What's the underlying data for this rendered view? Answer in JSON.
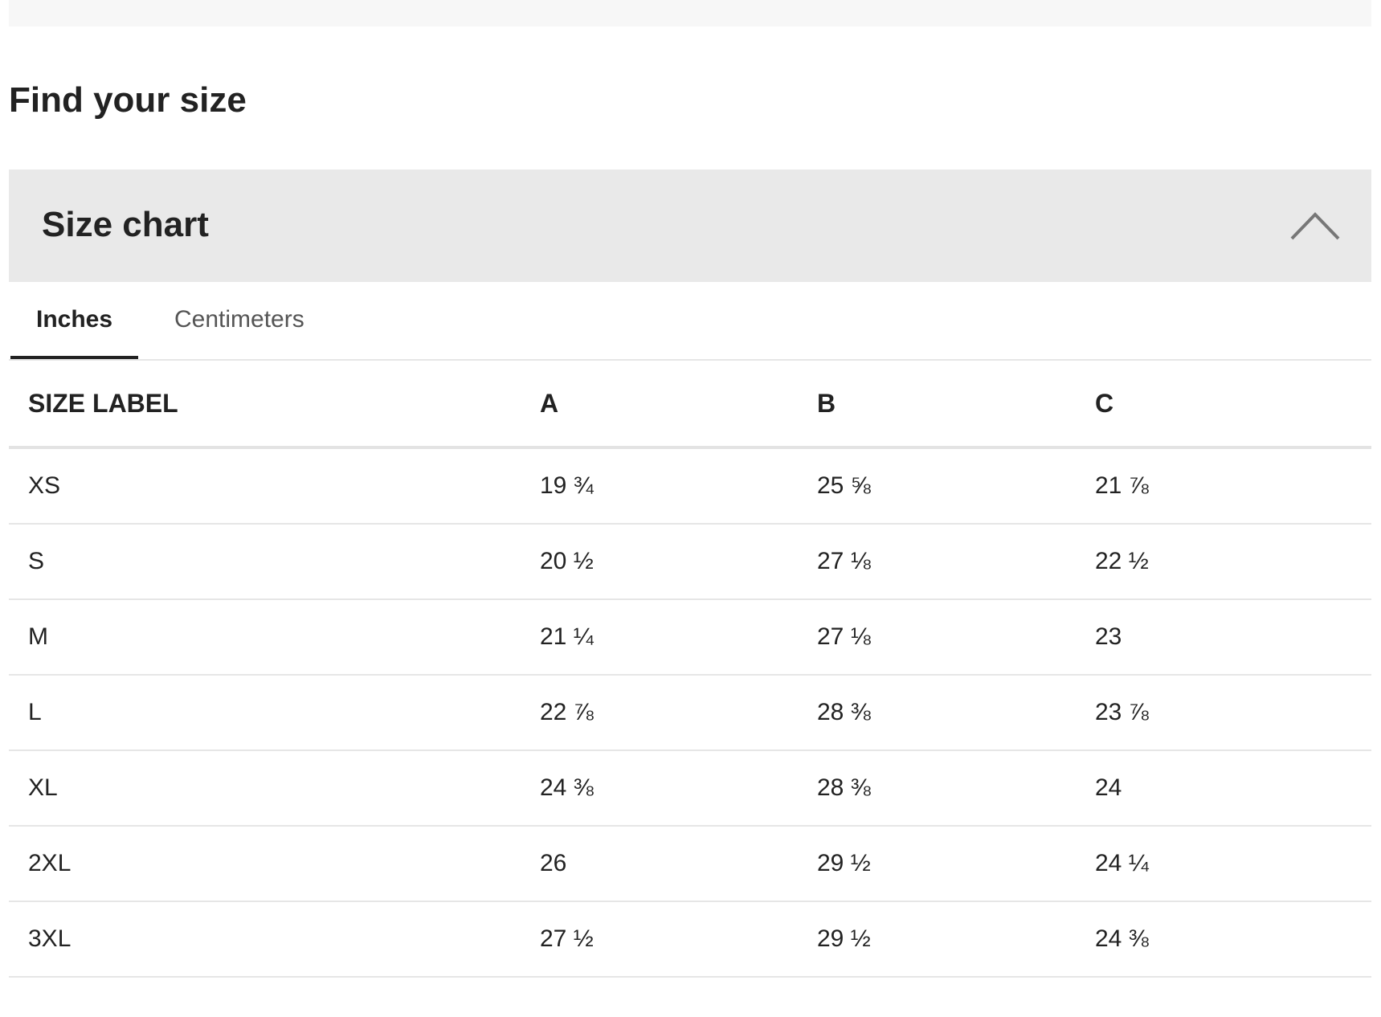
{
  "heading": "Find your size",
  "accordion": {
    "title": "Size chart",
    "expanded": true,
    "icon": "chevron-up-icon"
  },
  "tabs": [
    {
      "label": "Inches",
      "active": true
    },
    {
      "label": "Centimeters",
      "active": false
    }
  ],
  "table": {
    "headers": [
      "SIZE LABEL",
      "A",
      "B",
      "C"
    ],
    "rows": [
      [
        "XS",
        "19 ¾",
        "25 ⅝",
        "21 ⅞"
      ],
      [
        "S",
        "20 ½",
        "27 ⅛",
        "22 ½"
      ],
      [
        "M",
        "21 ¼",
        "27 ⅛",
        "23"
      ],
      [
        "L",
        "22 ⅞",
        "28 ⅜",
        "23 ⅞"
      ],
      [
        "XL",
        "24 ⅜",
        "28 ⅜",
        "24"
      ],
      [
        "2XL",
        "26",
        "29 ½",
        "24 ¼"
      ],
      [
        "3XL",
        "27 ½",
        "29 ½",
        "24 ⅜"
      ]
    ]
  }
}
